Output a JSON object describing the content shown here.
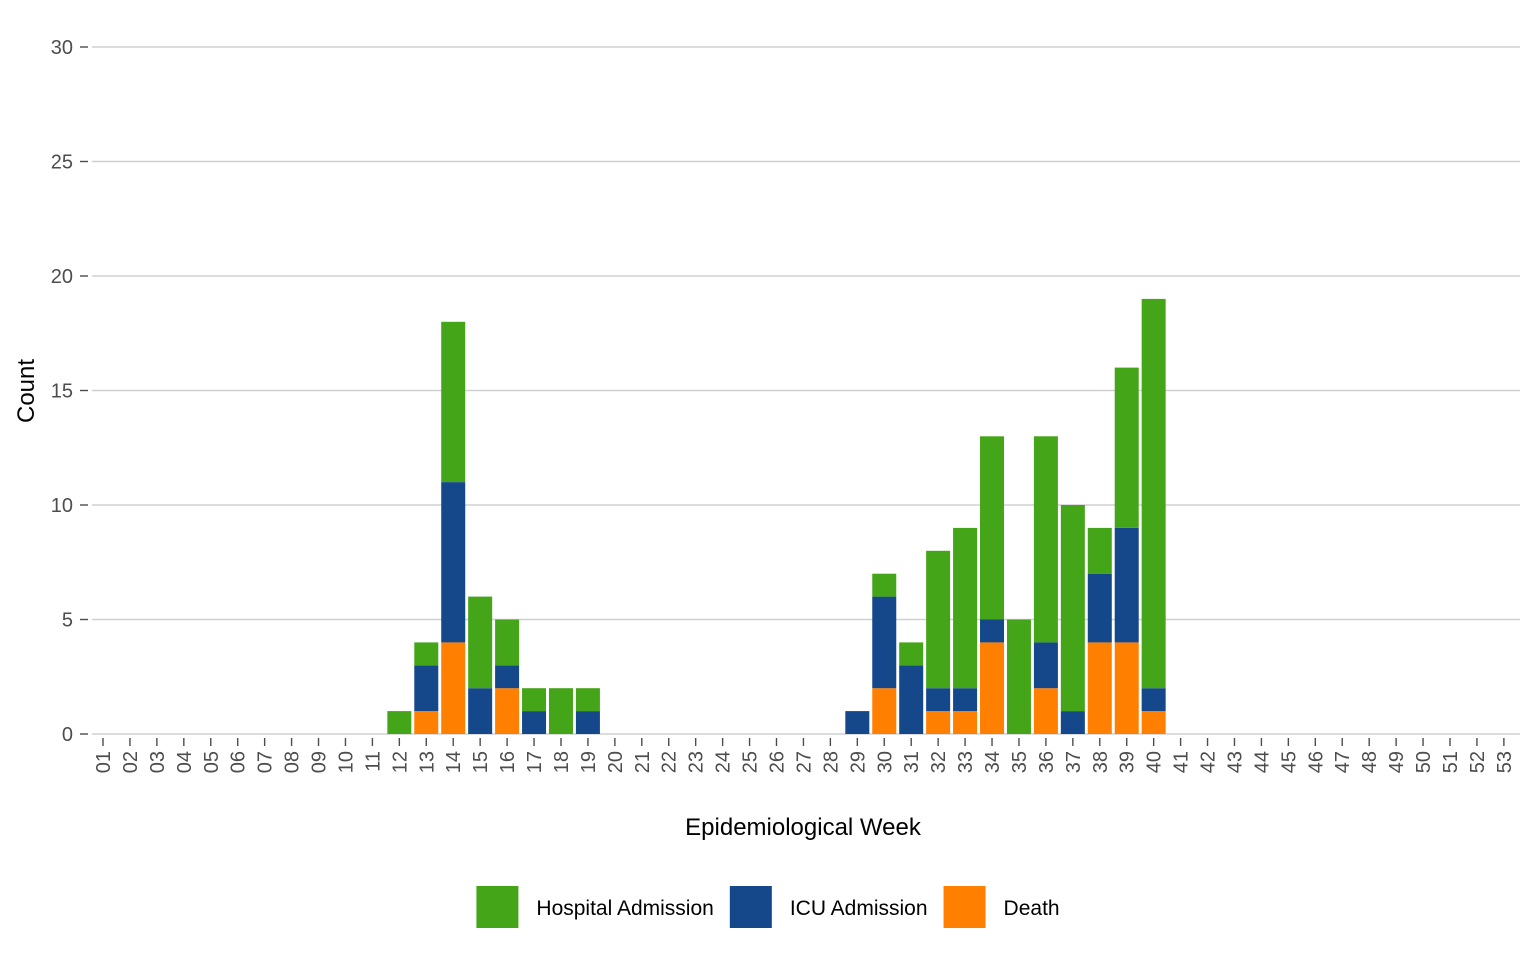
{
  "chart_data": {
    "type": "bar",
    "stacked": true,
    "xlabel": "Epidemiological Week",
    "ylabel": "Count",
    "ylim": [
      0,
      30
    ],
    "yticks": [
      0,
      5,
      10,
      15,
      20,
      25,
      30
    ],
    "grid": "horizontal",
    "legend_position": "bottom",
    "categories": [
      "01",
      "02",
      "03",
      "04",
      "05",
      "06",
      "07",
      "08",
      "09",
      "10",
      "11",
      "12",
      "13",
      "14",
      "15",
      "16",
      "17",
      "18",
      "19",
      "20",
      "21",
      "22",
      "23",
      "24",
      "25",
      "26",
      "27",
      "28",
      "29",
      "30",
      "31",
      "32",
      "33",
      "34",
      "35",
      "36",
      "37",
      "38",
      "39",
      "40",
      "41",
      "42",
      "43",
      "44",
      "45",
      "46",
      "47",
      "48",
      "49",
      "50",
      "51",
      "52",
      "53"
    ],
    "series": [
      {
        "name": "Death",
        "color": "#ff7f00",
        "values": [
          0,
          0,
          0,
          0,
          0,
          0,
          0,
          0,
          0,
          0,
          0,
          0,
          1,
          4,
          0,
          2,
          0,
          0,
          0,
          0,
          0,
          0,
          0,
          0,
          0,
          0,
          0,
          0,
          0,
          2,
          0,
          1,
          1,
          4,
          0,
          2,
          0,
          4,
          4,
          1,
          0,
          0,
          0,
          0,
          0,
          0,
          0,
          0,
          0,
          0,
          0,
          0,
          0
        ]
      },
      {
        "name": "ICU Admission",
        "color": "#15478b",
        "values": [
          0,
          0,
          0,
          0,
          0,
          0,
          0,
          0,
          0,
          0,
          0,
          0,
          2,
          7,
          2,
          1,
          1,
          0,
          1,
          0,
          0,
          0,
          0,
          0,
          0,
          0,
          0,
          0,
          1,
          4,
          3,
          1,
          1,
          1,
          0,
          2,
          1,
          3,
          5,
          1,
          0,
          0,
          0,
          0,
          0,
          0,
          0,
          0,
          0,
          0,
          0,
          0,
          0
        ]
      },
      {
        "name": "Hospital Admission",
        "color": "#44a519",
        "values": [
          0,
          0,
          0,
          0,
          0,
          0,
          0,
          0,
          0,
          0,
          0,
          1,
          1,
          7,
          4,
          2,
          1,
          2,
          1,
          0,
          0,
          0,
          0,
          0,
          0,
          0,
          0,
          0,
          0,
          1,
          1,
          6,
          7,
          8,
          5,
          9,
          9,
          2,
          7,
          17,
          0,
          0,
          0,
          0,
          0,
          0,
          0,
          0,
          0,
          0,
          0,
          0,
          0
        ]
      }
    ],
    "legend_order": [
      "Hospital Admission",
      "ICU Admission",
      "Death"
    ]
  }
}
